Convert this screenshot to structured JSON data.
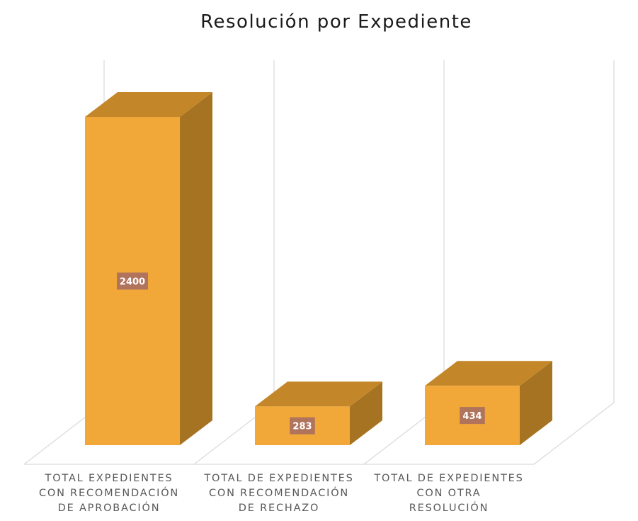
{
  "chart_data": {
    "type": "bar",
    "title": "Resolución por Expediente",
    "categories": [
      [
        "TOTAL EXPEDIENTES",
        "CON RECOMENDACIÓN",
        "DE APROBACIÓN"
      ],
      [
        "TOTAL DE EXPEDIENTES",
        "CON RECOMENDACIÓN",
        "DE RECHAZO"
      ],
      [
        "TOTAL DE EXPEDIENTES",
        "CON OTRA",
        "RESOLUCIÓN"
      ]
    ],
    "values": [
      2400,
      283,
      434
    ],
    "data_labels": [
      "2400",
      "283",
      "434"
    ],
    "ylim": [
      0,
      2800
    ],
    "grid": true,
    "style": "3d-column",
    "colors": {
      "bar_front": "#f2a838",
      "bar_top": "#c38629",
      "bar_side": "#a67322",
      "label_bg": "#b0735c",
      "gridline": "#d9d9d9"
    }
  }
}
